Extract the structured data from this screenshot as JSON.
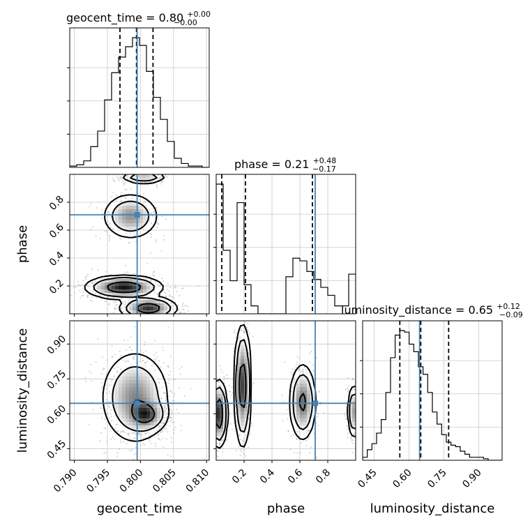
{
  "chart_data": {
    "type": "corner",
    "parameters": [
      "geocent_time",
      "phase",
      "luminosity_distance"
    ],
    "truths": {
      "geocent_time": 0.7995,
      "phase": 0.71,
      "luminosity_distance": 0.645
    },
    "colors": {
      "truth": "#4682b4",
      "hist": "#000000",
      "grid": "#c8c8c8"
    },
    "titles": {
      "geocent_time": {
        "label": "geocent_time = 0.80",
        "plus": "+0.00",
        "minus": "−0.00"
      },
      "phase": {
        "label": "phase = 0.21",
        "plus": "+0.48",
        "minus": "−0.17"
      },
      "luminosity_distance": {
        "label": "luminosity_distance = 0.65",
        "plus": "+0.12",
        "minus": "−0.09"
      }
    },
    "axis_labels": {
      "x": [
        "geocent_time",
        "phase",
        "luminosity_distance"
      ],
      "y": [
        "phase",
        "luminosity_distance"
      ]
    },
    "ranges": {
      "geocent_time": [
        0.7893,
        0.8104
      ],
      "phase": [
        0.0,
        1.0
      ],
      "luminosity_distance": [
        0.4,
        1.0
      ]
    },
    "ticks": {
      "geocent_time": [
        "0.790",
        "0.795",
        "0.800",
        "0.805",
        "0.810"
      ],
      "phase": [
        "0.2",
        "0.4",
        "0.6",
        "0.8"
      ],
      "luminosity_distance": [
        "0.45",
        "0.60",
        "0.75",
        "0.90"
      ]
    },
    "quantile_lines": {
      "geocent_time": [
        0.7969,
        0.7994,
        0.8019
      ],
      "phase": [
        0.04,
        0.21,
        0.69
      ],
      "luminosity_distance": [
        0.56,
        0.65,
        0.77
      ]
    },
    "histograms": {
      "geocent_time": {
        "edges_start": 0.7893,
        "bin_width": 0.001055,
        "counts": [
          0.01,
          0.02,
          0.05,
          0.16,
          0.28,
          0.52,
          0.73,
          0.85,
          0.93,
          1.0,
          0.94,
          0.74,
          0.54,
          0.37,
          0.2,
          0.07,
          0.03,
          0.01,
          0.01,
          0.0
        ]
      },
      "phase": {
        "edges_start": 0.0,
        "bin_width": 0.05,
        "counts": [
          0.98,
          0.48,
          0.25,
          0.84,
          0.22,
          0.06,
          0.0,
          0.0,
          0.0,
          0.0,
          0.28,
          0.42,
          0.4,
          0.32,
          0.26,
          0.2,
          0.14,
          0.06,
          0.06,
          0.3
        ]
      },
      "luminosity_distance": {
        "edges_start": 0.4,
        "bin_width": 0.02,
        "counts": [
          0.02,
          0.07,
          0.11,
          0.18,
          0.27,
          0.45,
          0.68,
          0.83,
          0.86,
          0.85,
          0.77,
          0.72,
          0.62,
          0.57,
          0.45,
          0.32,
          0.24,
          0.17,
          0.12,
          0.1,
          0.09,
          0.06,
          0.04,
          0.02,
          0.02,
          0.02,
          0.01,
          0.0,
          0.0,
          0.0
        ]
      }
    },
    "density_blobs": {
      "phase_vs_geocent_time": [
        {
          "x": 0.7985,
          "y": 0.7,
          "sx": 0.0018,
          "sy": 0.07,
          "w": 0.45
        },
        {
          "x": 0.7975,
          "y": 0.19,
          "sx": 0.0024,
          "sy": 0.035,
          "w": 0.9
        },
        {
          "x": 0.8012,
          "y": 0.04,
          "sx": 0.0018,
          "sy": 0.035,
          "w": 0.8
        },
        {
          "x": 0.8005,
          "y": 0.98,
          "sx": 0.0015,
          "sy": 0.02,
          "w": 0.35
        }
      ],
      "luminosity_distance_vs_geocent_time": [
        {
          "x": 0.7992,
          "y": 0.67,
          "sx": 0.0022,
          "sy": 0.085,
          "w": 0.7
        },
        {
          "x": 0.8008,
          "y": 0.595,
          "sx": 0.0013,
          "sy": 0.03,
          "w": 0.9
        }
      ],
      "luminosity_distance_vs_phase": [
        {
          "x": 0.19,
          "y": 0.72,
          "sx": 0.025,
          "sy": 0.11,
          "w": 0.8
        },
        {
          "x": 0.02,
          "y": 0.6,
          "sx": 0.025,
          "sy": 0.06,
          "w": 0.9
        },
        {
          "x": 0.62,
          "y": 0.65,
          "sx": 0.04,
          "sy": 0.07,
          "w": 0.6
        },
        {
          "x": 0.99,
          "y": 0.61,
          "sx": 0.02,
          "sy": 0.05,
          "w": 0.5
        }
      ]
    },
    "contour_levels": [
      0.39,
      0.86,
      0.99
    ],
    "grid": true
  }
}
